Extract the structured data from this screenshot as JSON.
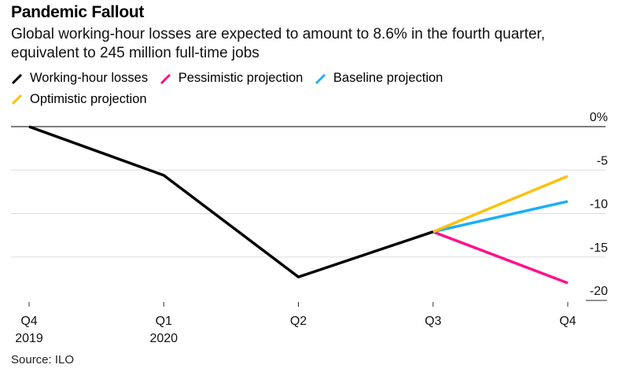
{
  "header": {
    "title": "Pandemic Fallout",
    "subtitle": "Global working-hour losses are expected to amount to 8.6% in the fourth quarter, equivalent to 245 million full-time jobs"
  },
  "legend": [
    {
      "label": "Working-hour losses",
      "color": "#000000"
    },
    {
      "label": "Pessimistic projection",
      "color": "#ff0f8c"
    },
    {
      "label": "Baseline projection",
      "color": "#1ab0f5"
    },
    {
      "label": "Optimistic projection",
      "color": "#fcc10e"
    }
  ],
  "footer": {
    "source": "Source: ILO"
  },
  "chart_data": {
    "type": "line",
    "title": "Pandemic Fallout",
    "xlabel": "",
    "ylabel": "",
    "x": [
      "Q4 2019",
      "Q1 2020",
      "Q2",
      "Q3",
      "Q4"
    ],
    "x_tick_labels": [
      {
        "line1": "Q4",
        "line2": "2019"
      },
      {
        "line1": "Q1",
        "line2": "2020"
      },
      {
        "line1": "Q2",
        "line2": ""
      },
      {
        "line1": "Q3",
        "line2": ""
      },
      {
        "line1": "Q4",
        "line2": ""
      }
    ],
    "y_ticks": [
      0,
      -5,
      -10,
      -15,
      -20
    ],
    "y_tick_labels": [
      "0%",
      "-5",
      "-10",
      "-15",
      "-20"
    ],
    "ylim": [
      -20,
      0
    ],
    "grid": true,
    "legend_position": "top-left",
    "series": [
      {
        "name": "Working-hour losses",
        "color": "#000000",
        "x_index": [
          0,
          1,
          2,
          3
        ],
        "values": [
          0,
          -5.6,
          -17.3,
          -12.1
        ]
      },
      {
        "name": "Pessimistic projection",
        "color": "#ff0f8c",
        "x_index": [
          3,
          4
        ],
        "values": [
          -12.1,
          -18.0
        ]
      },
      {
        "name": "Baseline projection",
        "color": "#1ab0f5",
        "x_index": [
          3,
          4
        ],
        "values": [
          -12.1,
          -8.6
        ]
      },
      {
        "name": "Optimistic projection",
        "color": "#fcc10e",
        "x_index": [
          3,
          4
        ],
        "values": [
          -12.1,
          -5.7
        ]
      }
    ]
  }
}
